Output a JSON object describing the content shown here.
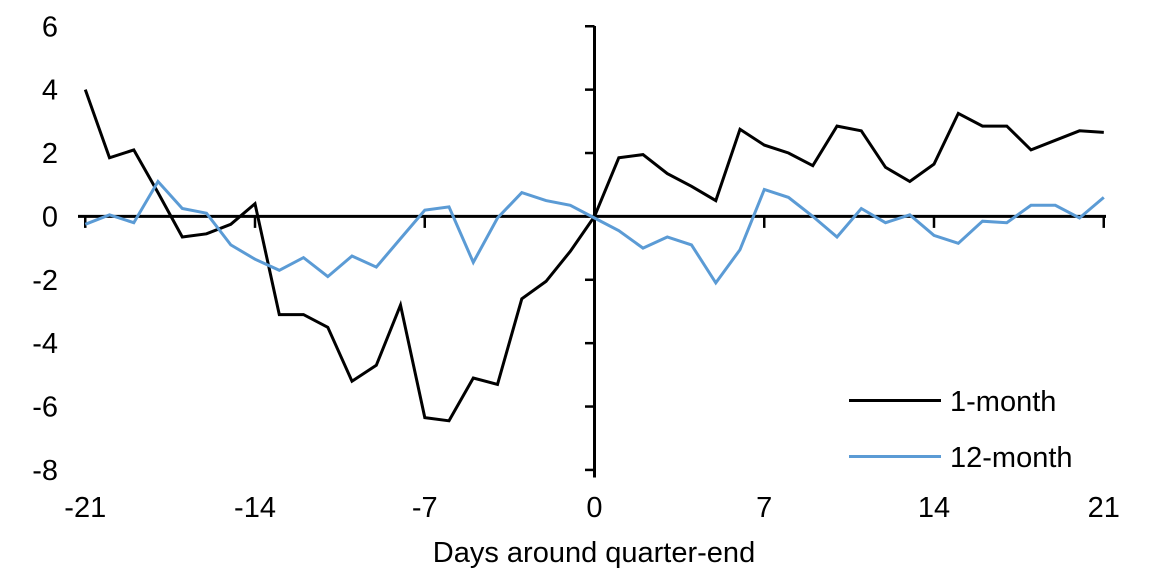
{
  "chart_data": {
    "type": "line",
    "title": "",
    "xlabel": "Days around quarter-end",
    "ylabel": "",
    "grid": false,
    "legend_position": "inside-lower-right",
    "axes_cross_at_zero": true,
    "xlim": [
      -21,
      21
    ],
    "ylim": [
      -8,
      6
    ],
    "x_ticks": [
      -21,
      -14,
      -7,
      0,
      7,
      14,
      21
    ],
    "y_ticks": [
      6,
      4,
      2,
      0,
      -2,
      -4,
      -6,
      -8
    ],
    "x": [
      -21,
      -20,
      -19,
      -18,
      -17,
      -16,
      -15,
      -14,
      -13,
      -12,
      -11,
      -10,
      -9,
      -8,
      -7,
      -6,
      -5,
      -4,
      -3,
      -2,
      -1,
      0,
      1,
      2,
      3,
      4,
      5,
      6,
      7,
      8,
      9,
      10,
      11,
      12,
      13,
      14,
      15,
      16,
      17,
      18,
      19,
      20,
      21
    ],
    "series": [
      {
        "name": "1-month",
        "color": "#000000",
        "values": [
          4.0,
          1.85,
          2.1,
          0.75,
          -0.65,
          -0.55,
          -0.25,
          0.4,
          -3.1,
          -3.1,
          -3.5,
          -5.2,
          -4.7,
          -2.8,
          -6.35,
          -6.45,
          -5.1,
          -5.3,
          -2.6,
          -2.05,
          -1.1,
          0.0,
          1.85,
          1.95,
          1.35,
          0.95,
          0.5,
          2.75,
          2.25,
          2.0,
          1.6,
          2.85,
          2.7,
          1.55,
          1.1,
          1.65,
          3.25,
          2.85,
          2.85,
          2.1,
          2.4,
          2.7,
          2.65
        ]
      },
      {
        "name": "12-month",
        "color": "#5B9BD5",
        "values": [
          -0.25,
          0.05,
          -0.2,
          1.1,
          0.25,
          0.1,
          -0.9,
          -1.35,
          -1.7,
          -1.3,
          -1.9,
          -1.25,
          -1.6,
          -0.7,
          0.2,
          0.3,
          -1.45,
          -0.05,
          0.75,
          0.5,
          0.35,
          -0.05,
          -0.45,
          -1.0,
          -0.65,
          -0.9,
          -2.1,
          -1.05,
          0.85,
          0.6,
          0.0,
          -0.65,
          0.25,
          -0.2,
          0.05,
          -0.6,
          -0.85,
          -0.15,
          -0.2,
          0.35,
          0.35,
          -0.05,
          0.6
        ]
      }
    ]
  }
}
